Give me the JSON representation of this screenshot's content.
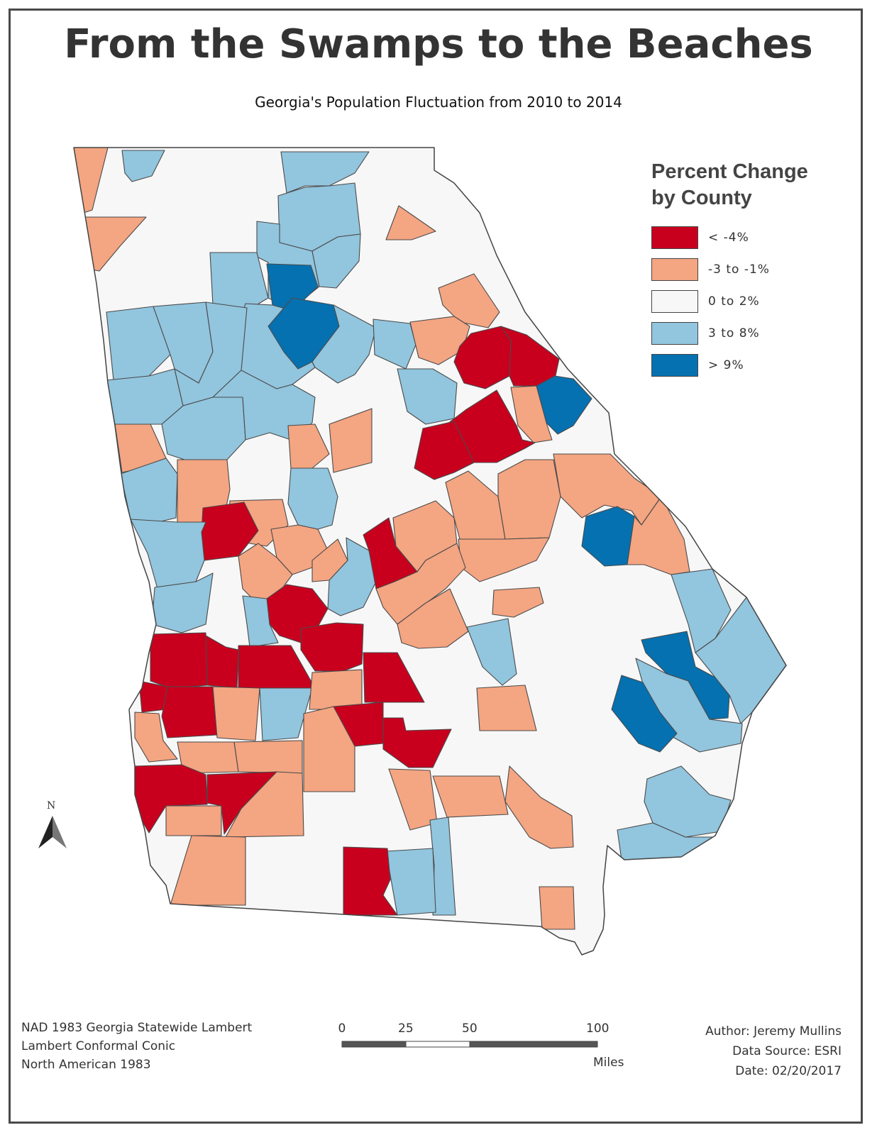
{
  "title": "From the Swamps to the Beaches",
  "subtitle": "Georgia's Population Fluctuation from 2010 to 2014",
  "legend": {
    "title_line1": "Percent Change",
    "title_line2": "by County",
    "classes": [
      {
        "key": "lt4",
        "label": "< -4%",
        "color": "#c8001e"
      },
      {
        "key": "m3m1",
        "label": "-3 to -1%",
        "color": "#f4a582"
      },
      {
        "key": "z2",
        "label": "0 to 2%",
        "color": "#f7f7f7"
      },
      {
        "key": "p38",
        "label": "3 to 8%",
        "color": "#92c5de"
      },
      {
        "key": "gt9",
        "label": "> 9%",
        "color": "#0571b0"
      }
    ]
  },
  "projection": {
    "line1": "NAD 1983 Georgia Statewide Lambert",
    "line2": "Lambert Conformal Conic",
    "line3": "North American 1983"
  },
  "credits": {
    "author": "Author: Jeremy Mullins",
    "source": "Data Source: ESRI",
    "date": "Date: 02/20/2017"
  },
  "scale_bar": {
    "ticks": [
      {
        "value": "0",
        "miles": 0
      },
      {
        "value": "25",
        "miles": 25
      },
      {
        "value": "50",
        "miles": 50
      },
      {
        "value": "100",
        "miles": 100
      }
    ],
    "units": "Miles"
  },
  "north_arrow": {
    "letter": "N"
  }
}
